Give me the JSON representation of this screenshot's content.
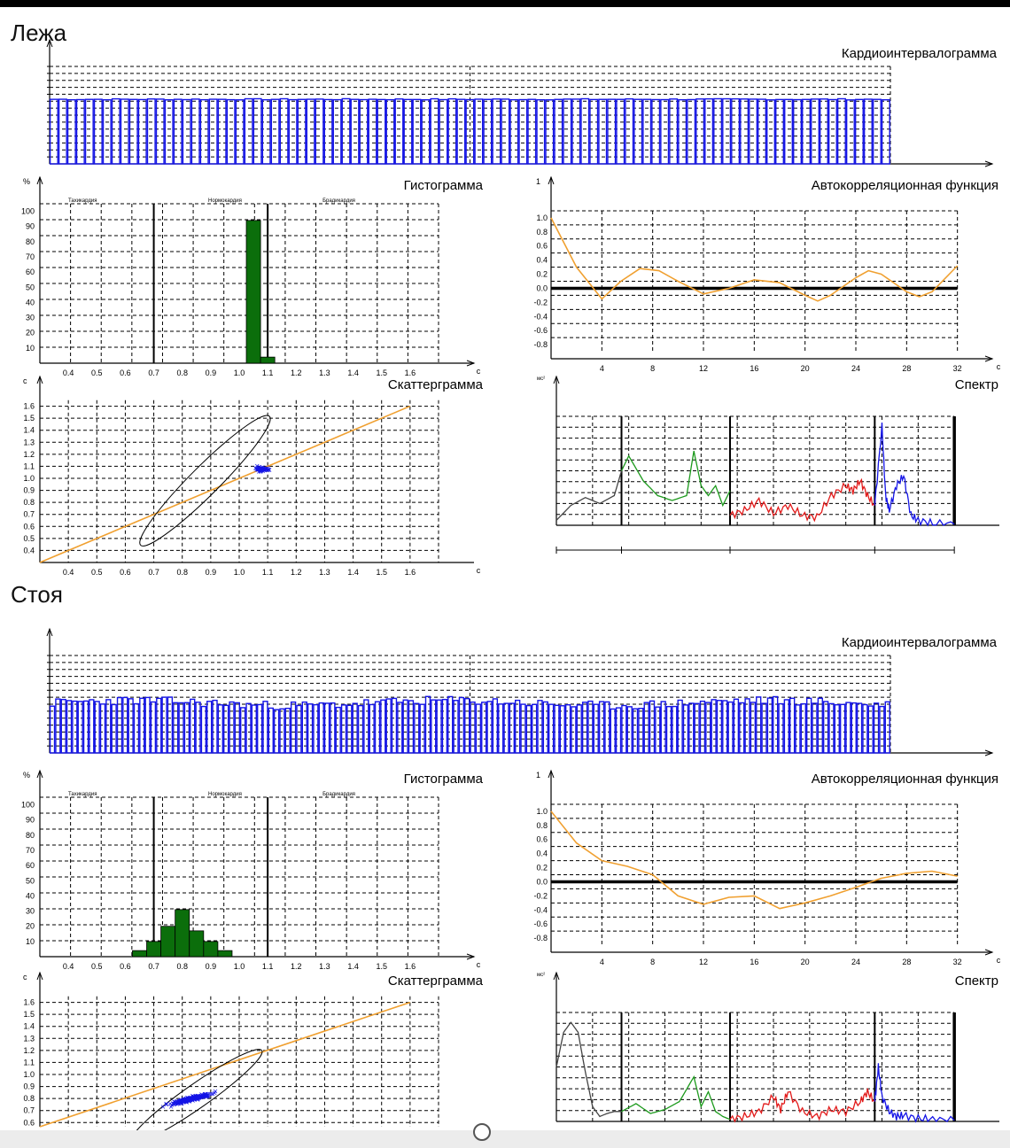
{
  "sections": [
    {
      "title": "Лежа"
    },
    {
      "title": "Стоя"
    }
  ],
  "colors": {
    "blue": "#1414e6",
    "green": "#0b6e0b",
    "orange": "#f0a030",
    "black": "#000000",
    "red": "#e21a1a",
    "spec_green": "#1c9a1c",
    "spec_gray": "#444444"
  },
  "ui": {
    "scroll_handle": "circle"
  },
  "chart_data": [
    {
      "id": "lying-rhythmogram",
      "type": "bar",
      "title": "Кардиоинтервалограмма",
      "ylim": [
        0,
        1.6
      ],
      "values_generator": "steady",
      "mean": 1.06,
      "spread": 0.01,
      "count": 95
    },
    {
      "id": "lying-histogram",
      "type": "bar",
      "title": "Гистограмма",
      "ylabel": "%",
      "xlabel": "с",
      "zone_labels": [
        "Тахикардия",
        "Нормокардия",
        "Брадикардия"
      ],
      "y_ticks": [
        "10",
        "20",
        "30",
        "40",
        "50",
        "60",
        "70",
        "80",
        "90",
        "100"
      ],
      "x_ticks": [
        "0.4",
        "0.5",
        "0.6",
        "0.7",
        "0.8",
        "0.9",
        "1.0",
        "1.1",
        "1.2",
        "1.3",
        "1.4",
        "1.5",
        "1.6"
      ],
      "bars": [
        {
          "x": 1.05,
          "value": 94
        },
        {
          "x": 1.1,
          "value": 4
        }
      ],
      "zone_lines": [
        0.7,
        1.1
      ],
      "ylim": [
        0,
        105
      ],
      "xlim": [
        0.3,
        1.7
      ]
    },
    {
      "id": "lying-autocorrelation",
      "type": "line",
      "title": "Автокорреляционная функция",
      "ylabel": "1",
      "xlabel": "с",
      "y_ticks": [
        "1.0",
        "0.8",
        "0.6",
        "0.4",
        "0.2",
        "0.0",
        "-0.2",
        "-0.4",
        "-0.6",
        "-0.8"
      ],
      "x_ticks": [
        "4",
        "8",
        "12",
        "16",
        "20",
        "24",
        "28",
        "32"
      ],
      "x": [
        0,
        2,
        4,
        5.5,
        7,
        8.5,
        10,
        12,
        14,
        16,
        18,
        20,
        21,
        22,
        24,
        25,
        26,
        28,
        29,
        30,
        32
      ],
      "y": [
        1.0,
        0.3,
        -0.15,
        0.1,
        0.28,
        0.25,
        0.1,
        -0.08,
        0.0,
        0.12,
        0.08,
        -0.1,
        -0.18,
        -0.1,
        0.15,
        0.25,
        0.2,
        -0.05,
        -0.12,
        -0.05,
        0.32
      ],
      "ylim": [
        -1,
        1.2
      ],
      "xlim": [
        0,
        33
      ]
    },
    {
      "id": "lying-scattergram",
      "type": "scatter",
      "title": "Скаттерграмма",
      "ylabel": "с",
      "xlabel": "с",
      "x_ticks": [
        "0.4",
        "0.5",
        "0.6",
        "0.7",
        "0.8",
        "0.9",
        "1.0",
        "1.1",
        "1.2",
        "1.3",
        "1.4",
        "1.5",
        "1.6"
      ],
      "y_ticks": [
        "0.4",
        "0.5",
        "0.6",
        "0.7",
        "0.8",
        "0.9",
        "1.0",
        "1.1",
        "1.2",
        "1.3",
        "1.4",
        "1.5",
        "1.6"
      ],
      "cluster": {
        "cx": 1.08,
        "cy": 1.08,
        "sx": 0.02,
        "sy": 0.015,
        "n": 60
      },
      "ellipse": {
        "cx": 0.88,
        "cy": 0.98,
        "major": 0.32,
        "minor": 0.12,
        "angle": 45
      },
      "xlim": [
        0.3,
        1.7
      ],
      "ylim": [
        0.3,
        1.7
      ]
    },
    {
      "id": "lying-spectrum",
      "type": "line",
      "title": "Спектр",
      "ylabel": "мс²",
      "segments": [
        {
          "color": "spec_gray",
          "x": [
            0,
            0.02,
            0.04,
            0.06,
            0.08,
            0.09
          ],
          "y": [
            0.05,
            0.2,
            0.28,
            0.22,
            0.3,
            0.55
          ]
        },
        {
          "color": "spec_green",
          "x": [
            0.09,
            0.1,
            0.12,
            0.14,
            0.16,
            0.18,
            0.19,
            0.2,
            0.21,
            0.22,
            0.23,
            0.24
          ],
          "y": [
            0.55,
            0.7,
            0.45,
            0.3,
            0.25,
            0.3,
            0.75,
            0.4,
            0.3,
            0.4,
            0.2,
            0.35
          ]
        },
        {
          "color": "red",
          "x": [
            0.24,
            0.26,
            0.28,
            0.3,
            0.32,
            0.34,
            0.36,
            0.38,
            0.4,
            0.41,
            0.42,
            0.43,
            0.44
          ],
          "y": [
            0.1,
            0.15,
            0.25,
            0.12,
            0.2,
            0.1,
            0.08,
            0.3,
            0.4,
            0.35,
            0.45,
            0.3,
            0.2
          ]
        },
        {
          "color": "blue",
          "x": [
            0.44,
            0.45,
            0.455,
            0.46,
            0.47,
            0.48,
            0.49,
            0.5,
            0.52,
            0.55
          ],
          "y": [
            0.2,
            1.0,
            0.3,
            0.15,
            0.4,
            0.5,
            0.1,
            0.05,
            0.02,
            0.01
          ]
        }
      ],
      "band_lines": [
        0.09,
        0.24,
        0.44,
        0.55
      ],
      "xlim": [
        0,
        0.6
      ],
      "ylim": [
        0,
        1.1
      ]
    },
    {
      "id": "standing-rhythmogram",
      "type": "bar",
      "title": "Кардиоинтервалограмма",
      "ylim": [
        0,
        1.6
      ],
      "values_generator": "variable",
      "mean": 0.82,
      "spread": 0.07,
      "count": 150
    },
    {
      "id": "standing-histogram",
      "type": "bar",
      "title": "Гистограмма",
      "ylabel": "%",
      "xlabel": "с",
      "zone_labels": [
        "Тахикардия",
        "Нормокардия",
        "Брадикардия"
      ],
      "y_ticks": [
        "10",
        "20",
        "30",
        "40",
        "50",
        "60",
        "70",
        "80",
        "90",
        "100"
      ],
      "x_ticks": [
        "0.4",
        "0.5",
        "0.6",
        "0.7",
        "0.8",
        "0.9",
        "1.0",
        "1.1",
        "1.2",
        "1.3",
        "1.4",
        "1.5",
        "1.6"
      ],
      "bars": [
        {
          "x": 0.65,
          "value": 4
        },
        {
          "x": 0.7,
          "value": 10
        },
        {
          "x": 0.75,
          "value": 20
        },
        {
          "x": 0.8,
          "value": 31
        },
        {
          "x": 0.85,
          "value": 17
        },
        {
          "x": 0.9,
          "value": 10
        },
        {
          "x": 0.95,
          "value": 4
        }
      ],
      "zone_lines": [
        0.7,
        1.1
      ],
      "ylim": [
        0,
        105
      ],
      "xlim": [
        0.3,
        1.7
      ]
    },
    {
      "id": "standing-autocorrelation",
      "type": "line",
      "title": "Автокорреляционная функция",
      "ylabel": "1",
      "xlabel": "с",
      "y_ticks": [
        "1.0",
        "0.8",
        "0.6",
        "0.4",
        "0.2",
        "0.0",
        "-0.2",
        "-0.4",
        "-0.6",
        "-0.8"
      ],
      "x_ticks": [
        "4",
        "8",
        "12",
        "16",
        "20",
        "24",
        "28",
        "32"
      ],
      "x": [
        0,
        2,
        4,
        6,
        8,
        10,
        12,
        14,
        16,
        18,
        20,
        22,
        24,
        26,
        28,
        30,
        32
      ],
      "y": [
        1.0,
        0.55,
        0.3,
        0.22,
        0.1,
        -0.2,
        -0.32,
        -0.22,
        -0.2,
        -0.38,
        -0.3,
        -0.2,
        -0.08,
        0.05,
        0.12,
        0.15,
        0.08
      ],
      "ylim": [
        -1,
        1.2
      ],
      "xlim": [
        0,
        33
      ]
    },
    {
      "id": "standing-scattergram",
      "type": "scatter",
      "title": "Скаттерграмма",
      "ylabel": "с",
      "xlabel": "с",
      "y_ticks": [
        "0.6",
        "0.7",
        "0.8",
        "0.9",
        "1.0",
        "1.1",
        "1.2",
        "1.3",
        "1.4",
        "1.5",
        "1.6"
      ],
      "cluster": {
        "cx": 0.83,
        "cy": 0.8,
        "sx": 0.06,
        "sy": 0.05,
        "n": 220,
        "corr": 0.7
      },
      "ellipse": {
        "cx": 0.85,
        "cy": 0.82,
        "major": 0.28,
        "minor": 0.1,
        "angle": 35
      },
      "xlim": [
        0.3,
        1.7
      ],
      "ylim": [
        0.3,
        1.7
      ]
    },
    {
      "id": "standing-spectrum",
      "type": "line",
      "title": "Спектр",
      "ylabel": "мс²",
      "segments": [
        {
          "color": "spec_gray",
          "x": [
            0,
            0.01,
            0.02,
            0.03,
            0.04,
            0.05,
            0.06,
            0.07,
            0.08,
            0.09
          ],
          "y": [
            0.55,
            0.9,
            1.0,
            0.9,
            0.5,
            0.15,
            0.05,
            0.08,
            0.1,
            0.1
          ]
        },
        {
          "color": "spec_green",
          "x": [
            0.09,
            0.11,
            0.13,
            0.15,
            0.17,
            0.19,
            0.2,
            0.21,
            0.22,
            0.23,
            0.24
          ],
          "y": [
            0.1,
            0.18,
            0.08,
            0.12,
            0.2,
            0.45,
            0.15,
            0.3,
            0.1,
            0.05,
            0.02
          ]
        },
        {
          "color": "red",
          "x": [
            0.24,
            0.26,
            0.28,
            0.3,
            0.31,
            0.32,
            0.34,
            0.36,
            0.38,
            0.4,
            0.42,
            0.43,
            0.44
          ],
          "y": [
            0.02,
            0.05,
            0.1,
            0.25,
            0.12,
            0.3,
            0.1,
            0.05,
            0.12,
            0.1,
            0.2,
            0.3,
            0.2
          ]
        },
        {
          "color": "blue",
          "x": [
            0.44,
            0.445,
            0.45,
            0.46,
            0.47,
            0.48,
            0.5,
            0.52,
            0.55
          ],
          "y": [
            0.2,
            0.55,
            0.25,
            0.1,
            0.05,
            0.06,
            0.03,
            0.02,
            0.01
          ]
        }
      ],
      "band_lines": [
        0.09,
        0.24,
        0.44,
        0.55
      ],
      "xlim": [
        0,
        0.6
      ],
      "ylim": [
        0,
        1.1
      ]
    }
  ]
}
